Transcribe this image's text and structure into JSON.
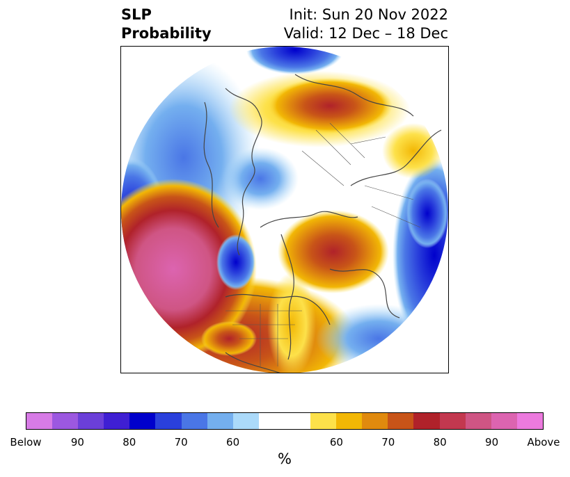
{
  "title": {
    "line1_left": "SLP",
    "line2_left": "Probability",
    "line1_right": "Init: Sun 20 Nov 2022",
    "line2_right": "Valid: 12 Dec – 18 Dec"
  },
  "colorbar": {
    "unit": "%",
    "labels": [
      "Below",
      "90",
      "80",
      "70",
      "60",
      "60",
      "70",
      "80",
      "90",
      "Above"
    ],
    "colors": [
      "#d77be6",
      "#9c58e0",
      "#6b3fd9",
      "#3f1fd3",
      "#0000cc",
      "#2a40dc",
      "#4a76e6",
      "#74afef",
      "#abdafa",
      "#ffffff",
      "#ffffff",
      "#fde14a",
      "#f2b705",
      "#e08a0e",
      "#c85418",
      "#b0222a",
      "#c3384f",
      "#cf5584",
      "#dc64b0",
      "#ec7ade"
    ]
  },
  "map": {
    "projection": "north-polar-stereographic",
    "field": "SLP probability",
    "features": [
      "coastlines",
      "country-borders",
      "state-borders"
    ]
  }
}
